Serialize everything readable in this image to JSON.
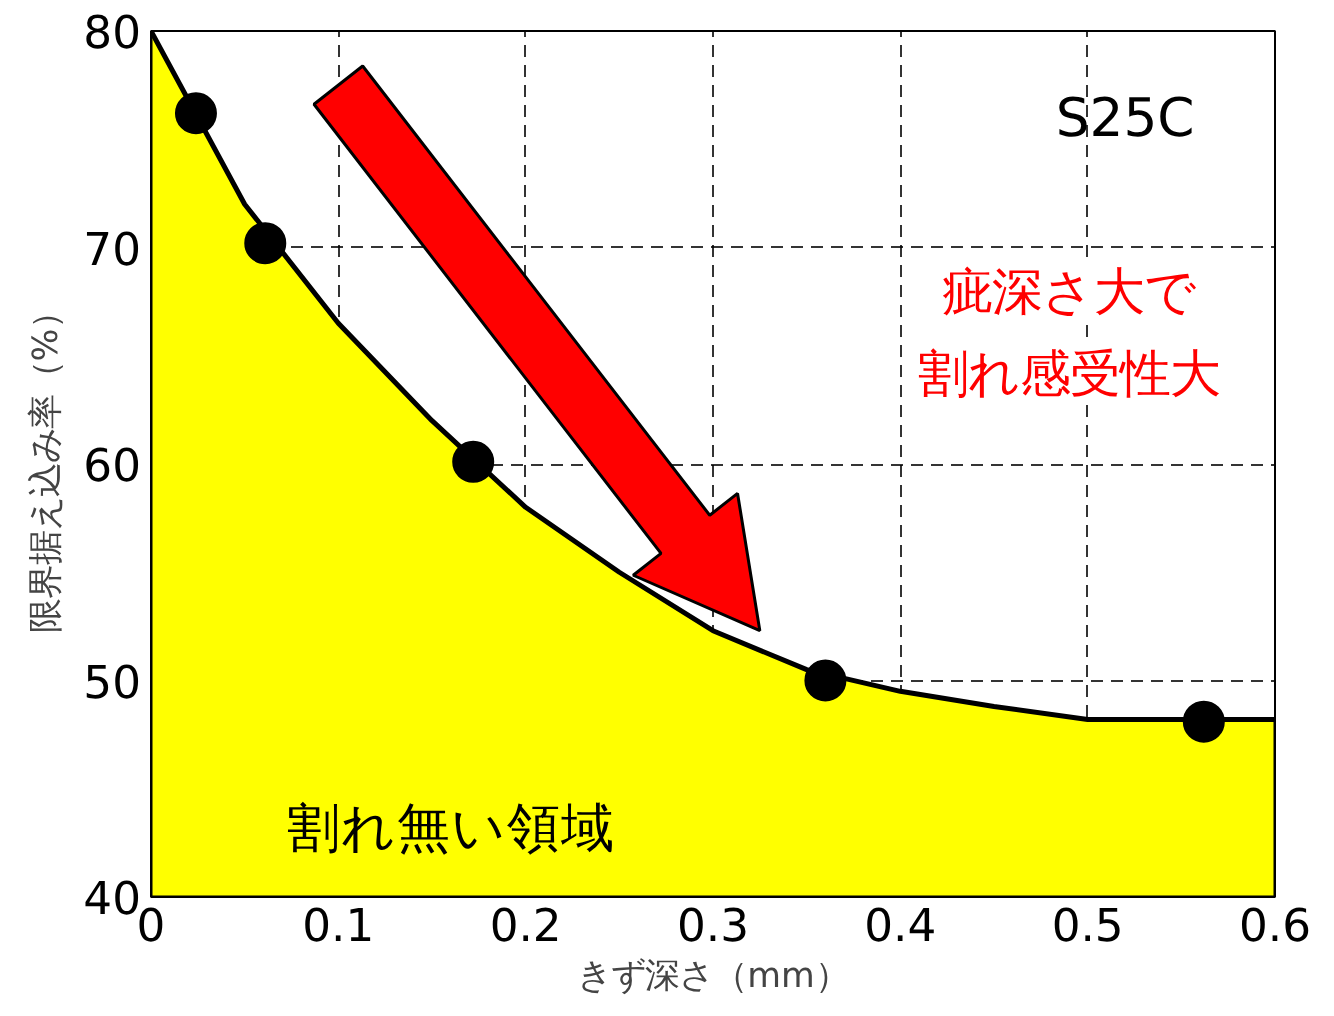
{
  "chart_data": {
    "type": "area",
    "xlabel": "きず深さ（mm）",
    "ylabel": "限界据え込み率（%）",
    "xlim": [
      0,
      0.6
    ],
    "xticks": [
      0,
      0.1,
      0.2,
      0.3,
      0.4,
      0.5,
      0.6
    ],
    "ylim": [
      40,
      80
    ],
    "yticks": [
      40,
      50,
      60,
      70,
      80
    ],
    "grid": true,
    "series": [
      {
        "color": "#ffff00",
        "x": [
          0,
          0.05,
          0.1,
          0.15,
          0.2,
          0.25,
          0.3,
          0.35,
          0.4,
          0.45,
          0.5,
          0.6
        ],
        "values": [
          80,
          72,
          66.5,
          62,
          58,
          55,
          52.3,
          50.5,
          49.5,
          48.8,
          48.2,
          48.2
        ]
      },
      {
        "type": "scatter",
        "color": "#000000",
        "marker": "circle",
        "x": [
          0.024,
          0.061,
          0.172,
          0.36,
          0.562
        ],
        "values": [
          76.2,
          70.2,
          60.1,
          50.0,
          48.1
        ]
      }
    ],
    "annotations": [
      "S25C",
      "疵深さ大で",
      "割れ感受性大",
      "割れ無い領域"
    ]
  }
}
